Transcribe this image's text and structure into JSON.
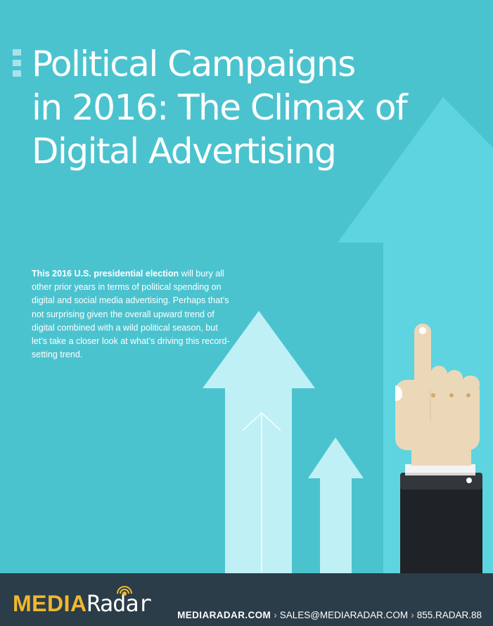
{
  "cover": {
    "title_lines": [
      "Political Campaigns",
      "in 2016: The Climax of",
      "Digital Advertising"
    ],
    "intro_bold": "This 2016 U.S. presidential election",
    "intro_rest": " will bury all other prior years in terms of political spending on digital and social media advertising. Perhaps that’s not surprising given the overall upward trend of digital combined with a wild political season, but let’s take a closer look at what’s driving this record-setting trend."
  },
  "footer": {
    "logo_media": "MEDIA",
    "logo_radar": "Radar",
    "website": "MEDIARADAR.COM",
    "email": "SALES@MEDIARADAR.COM",
    "phone": "855.RADAR.88",
    "separator": "›"
  },
  "colors": {
    "background": "#4bc3cf",
    "big_arrow": "#5dd4e0",
    "small_arrows": "#bff0f5",
    "footer": "#2b3d48",
    "logo_accent": "#f1b82f"
  },
  "icons": {
    "illustration": "hand-pointing-up",
    "radar": "radar-icon"
  }
}
